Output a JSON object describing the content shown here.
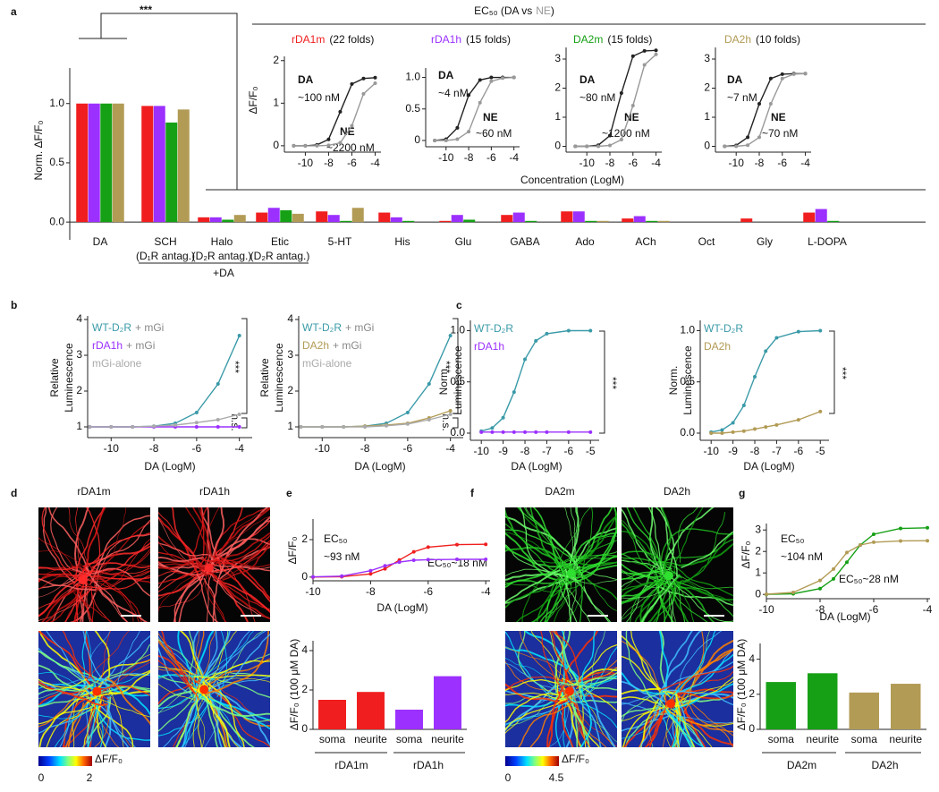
{
  "panel_labels": [
    "a",
    "b",
    "c",
    "d",
    "e",
    "f",
    "g"
  ],
  "inset_header": [
    {
      "text": "EC₅₀ (DA vs"
    },
    {
      "text": "NE",
      "color": "#999999"
    },
    {
      "text": ")"
    }
  ],
  "images": [
    {
      "titles": [
        {
          "text": "rDA1m",
          "color": "#f01e1e"
        },
        {
          "text": "rDA1h",
          "color": "#9b30ff"
        }
      ],
      "colorbar": {
        "ticks": [
          0,
          2
        ],
        "label": "ΔF/F₀"
      }
    },
    {
      "titles": [
        {
          "text": "DA2m",
          "color": "#16a016"
        },
        {
          "text": "DA2h",
          "color": "#b29b55"
        }
      ],
      "colorbar": {
        "ticks": [
          0,
          4.5
        ],
        "label": "ΔF/F₀"
      }
    }
  ],
  "chart_data": [
    {
      "type": "bar",
      "ylabel": "Norm. ΔF/F₀",
      "ylim": [
        -0.15,
        1.3
      ],
      "yticks": [
        {
          "value": 0,
          "label": "0.0"
        },
        {
          "value": 0.5,
          "label": "0.5"
        },
        {
          "value": 1,
          "label": "1.0"
        }
      ],
      "categories": [
        "DA",
        "SCH",
        "Halo",
        "Etic",
        "5-HT",
        "His",
        "Glu",
        "GABA",
        "Ado",
        "ACh",
        "Oct",
        "Gly",
        "L-DOPA"
      ],
      "category_sublabels": [
        null,
        "(D₁R antag.)",
        "(D₂R antag.)",
        "(D₂R antag.)",
        null,
        null,
        null,
        null,
        null,
        null,
        null,
        null,
        null
      ],
      "series": [
        {
          "color": "#f01e1e",
          "values": [
            1,
            0.98,
            0.04,
            0.08,
            0.09,
            0.08,
            0.01,
            0.06,
            0.09,
            0.03,
            0,
            0.03,
            0.08
          ]
        },
        {
          "color": "#9b30ff",
          "values": [
            1,
            0.98,
            0.04,
            0.12,
            0.06,
            0.04,
            0.06,
            0.08,
            0.09,
            0.05,
            0,
            0,
            0.11
          ]
        },
        {
          "color": "#16a016",
          "values": [
            1,
            0.84,
            0.02,
            0.1,
            0.01,
            0.01,
            0.02,
            0.01,
            0.01,
            0.01,
            0,
            0,
            0.01
          ]
        },
        {
          "color": "#b29b55",
          "values": [
            1,
            0.95,
            0.06,
            0.07,
            0.12,
            0,
            0,
            0,
            0.01,
            0.01,
            0,
            0,
            0
          ]
        }
      ],
      "annotations": [
        {
          "text": "***"
        },
        {
          "text": "+DA"
        }
      ]
    },
    {
      "type": "line",
      "title": "rDA1m",
      "title_color": "#f01e1e",
      "subtitle": "(22 folds)",
      "ylabel": "ΔF/F₀",
      "xlabel": "Concentration (LogM)",
      "xlim": [
        -11.8,
        -3.5
      ],
      "ylim": [
        -0.15,
        2.1
      ],
      "xticks": [
        -10,
        -8,
        -6,
        -4
      ],
      "yticks": [
        0,
        1,
        2
      ],
      "x": [
        -11,
        -10,
        -9,
        -8,
        -7,
        -6,
        -5,
        -4
      ],
      "series": [
        {
          "color": "#222222",
          "values": [
            0,
            0,
            0.02,
            0.15,
            0.8,
            1.45,
            1.58,
            1.6
          ]
        },
        {
          "color": "#999999",
          "values": [
            0,
            0,
            0,
            0.01,
            0.07,
            0.47,
            1.22,
            1.47
          ]
        }
      ],
      "annotations": [
        {
          "text": "DA"
        },
        {
          "text": "~100 nM"
        },
        {
          "text": "NE",
          "color": "#999999"
        },
        {
          "text": "~2200 nM",
          "color": "#999999"
        }
      ]
    },
    {
      "type": "line",
      "title": "rDA1h",
      "title_color": "#9b30ff",
      "subtitle": "(15 folds)",
      "xlim": [
        -11.8,
        -3.5
      ],
      "ylim": [
        -0.1,
        1.15
      ],
      "xticks": [
        -10,
        -8,
        -6,
        -4
      ],
      "yticks": [
        0,
        {
          "value": 0.5,
          "label": "0.5"
        },
        {
          "value": 1,
          "label": "1.0"
        }
      ],
      "x": [
        -11,
        -10,
        -9,
        -8,
        -7,
        -6,
        -5,
        -4
      ],
      "series": [
        {
          "color": "#222222",
          "values": [
            0,
            0.02,
            0.2,
            0.72,
            0.96,
            1,
            1,
            1
          ]
        },
        {
          "color": "#999999",
          "values": [
            0,
            0,
            0.02,
            0.14,
            0.6,
            0.94,
            0.99,
            1
          ]
        }
      ],
      "annotations": [
        {
          "text": "DA"
        },
        {
          "text": "~4 nM"
        },
        {
          "text": "NE",
          "color": "#999999"
        },
        {
          "text": "~60 nM",
          "color": "#999999"
        }
      ]
    },
    {
      "type": "line",
      "title": "DA2m",
      "title_color": "#16a016",
      "subtitle": "(15 folds)",
      "xlim": [
        -11.8,
        -3.5
      ],
      "ylim": [
        -0.2,
        3.4
      ],
      "xticks": [
        -10,
        -8,
        -6,
        -4
      ],
      "yticks": [
        0,
        1,
        2,
        3
      ],
      "x": [
        -11,
        -10,
        -9,
        -8,
        -7,
        -6,
        -5,
        -4
      ],
      "series": [
        {
          "color": "#222222",
          "values": [
            0,
            0,
            0.04,
            0.37,
            1.83,
            3.1,
            3.28,
            3.3
          ]
        },
        {
          "color": "#999999",
          "values": [
            0,
            0,
            0,
            0.03,
            0.23,
            1.4,
            2.8,
            3.16
          ]
        }
      ],
      "annotations": [
        {
          "text": "DA"
        },
        {
          "text": "~80 nM"
        },
        {
          "text": "NE",
          "color": "#999999"
        },
        {
          "text": "~1200 nM",
          "color": "#999999"
        }
      ]
    },
    {
      "type": "line",
      "title": "DA2h",
      "title_color": "#b29b55",
      "subtitle": "(10 folds)",
      "xlim": [
        -11.8,
        -3.5
      ],
      "ylim": [
        -0.2,
        3.4
      ],
      "xticks": [
        -10,
        -8,
        -6,
        -4
      ],
      "yticks": [
        0,
        1,
        2,
        3
      ],
      "x": [
        -11,
        -10,
        -9,
        -8,
        -7,
        -6,
        -5,
        -4
      ],
      "series": [
        {
          "color": "#222222",
          "values": [
            0,
            0.03,
            0.31,
            1.46,
            2.33,
            2.48,
            2.5,
            2.5
          ]
        },
        {
          "color": "#999999",
          "values": [
            0,
            0,
            0.04,
            0.31,
            1.46,
            2.33,
            2.48,
            2.5
          ]
        }
      ],
      "annotations": [
        {
          "text": "DA"
        },
        {
          "text": "~7 nM"
        },
        {
          "text": "NE",
          "color": "#999999"
        },
        {
          "text": "~70 nM",
          "color": "#999999"
        }
      ]
    },
    {
      "type": "line",
      "ylabel": [
        "Relative",
        "Luminescence"
      ],
      "xlabel": "DA (LogM)",
      "xlim": [
        -11.1,
        -3.4
      ],
      "ylim": [
        0.7,
        4.1
      ],
      "xticks": [
        -10,
        -8,
        -6,
        -4
      ],
      "yticks": [
        1,
        2,
        3,
        4
      ],
      "x": [
        -11,
        -10,
        -9,
        -8,
        -7,
        -6,
        -5,
        -4
      ],
      "series": [
        {
          "name": "WT-D₂R",
          "suffix": "+ mGi",
          "color": "#3a9aa8",
          "values": [
            1,
            1,
            1,
            1.02,
            1.1,
            1.4,
            2.2,
            3.55
          ]
        },
        {
          "name": "rDA1h",
          "suffix": "+ mGi",
          "color": "#9b30ff",
          "values": [
            1,
            1,
            1,
            1,
            1,
            1,
            1,
            1
          ]
        },
        {
          "name": "mGi-alone",
          "color": "#aaaaaa",
          "values": [
            1,
            1,
            1,
            1.02,
            1.05,
            1.12,
            1.2,
            1.35
          ]
        }
      ],
      "annotations": [
        {
          "text": "***"
        },
        {
          "text": "n.s."
        }
      ]
    },
    {
      "type": "line",
      "ylabel": [
        "Relative",
        "Luminescence"
      ],
      "xlabel": "DA (LogM)",
      "xlim": [
        -11.1,
        -3.4
      ],
      "ylim": [
        0.7,
        4.1
      ],
      "xticks": [
        -10,
        -8,
        -6,
        -4
      ],
      "yticks": [
        1,
        2,
        3,
        4
      ],
      "x": [
        -11,
        -10,
        -9,
        -8,
        -7,
        -6,
        -5,
        -4
      ],
      "series": [
        {
          "name": "WT-D₂R",
          "suffix": "+ mGi",
          "color": "#3a9aa8",
          "values": [
            1,
            1,
            1,
            1.02,
            1.1,
            1.4,
            2.2,
            3.55
          ]
        },
        {
          "name": "DA2h",
          "suffix": "+ mGi",
          "color": "#b29b55",
          "values": [
            1,
            1,
            1,
            1.02,
            1.05,
            1.1,
            1.25,
            1.45
          ]
        },
        {
          "name": "mGi-alone",
          "color": "#aaaaaa",
          "values": [
            1,
            1,
            1,
            1,
            1.03,
            1.08,
            1.2,
            1.35
          ]
        }
      ],
      "annotations": [
        {
          "text": "***"
        },
        {
          "text": "n.s."
        }
      ]
    },
    {
      "type": "line",
      "ylabel": [
        "Norm.",
        "Luminescence"
      ],
      "xlabel": "DA (LogM)",
      "xlim": [
        -10.5,
        -4.6
      ],
      "ylim": [
        -0.07,
        1.1
      ],
      "xticks": [
        -10,
        -9,
        -8,
        -7,
        -6,
        -5
      ],
      "yticks": [
        {
          "value": 0,
          "label": "0.0"
        },
        {
          "value": 0.5,
          "label": "0.5"
        },
        {
          "value": 1,
          "label": "1.0"
        }
      ],
      "x": [
        -10,
        -9.5,
        -9,
        -8.5,
        -8,
        -7.5,
        -7,
        -6,
        -5
      ],
      "series": [
        {
          "name": "WT-D₂R",
          "color": "#3a9aa8",
          "values": [
            0.02,
            0.05,
            0.15,
            0.4,
            0.72,
            0.9,
            0.97,
            1,
            1
          ]
        },
        {
          "name": "rDA1h",
          "color": "#9b30ff",
          "values": [
            0.01,
            0.01,
            0.01,
            0.01,
            0.01,
            0.01,
            0.01,
            0.01,
            0.01
          ]
        }
      ],
      "annotations": [
        {
          "text": "***"
        }
      ]
    },
    {
      "type": "line",
      "ylabel": [
        "Norm.",
        "Luminescence"
      ],
      "xlabel": "DA (LogM)",
      "xlim": [
        -10.5,
        -4.6
      ],
      "ylim": [
        -0.07,
        1.1
      ],
      "xticks": [
        -10,
        -9,
        -8,
        -7,
        -6,
        -5
      ],
      "yticks": [
        {
          "value": 0,
          "label": "0.0"
        },
        {
          "value": 0.5,
          "label": "0.5"
        },
        {
          "value": 1,
          "label": "1.0"
        }
      ],
      "x": [
        -10,
        -9.5,
        -9,
        -8.5,
        -8,
        -7.5,
        -7,
        -6,
        -5
      ],
      "series": [
        {
          "name": "WT-D₂R",
          "color": "#3a9aa8",
          "values": [
            0.01,
            0.03,
            0.1,
            0.27,
            0.55,
            0.8,
            0.93,
            0.99,
            1
          ]
        },
        {
          "name": "DA2h",
          "color": "#b29b55",
          "values": [
            0,
            0,
            0.01,
            0.02,
            0.04,
            0.06,
            0.08,
            0.13,
            0.21
          ]
        }
      ],
      "annotations": [
        {
          "text": "***"
        }
      ]
    },
    {
      "type": "line",
      "ylabel": "ΔF/F₀",
      "xlabel": "DA (LogM)",
      "xlim": [
        -10,
        -3.85
      ],
      "ylim": [
        -0.2,
        3.1
      ],
      "xticks": [
        -10,
        -8,
        -6,
        -4
      ],
      "yticks": [
        0,
        2
      ],
      "x": [
        -10,
        -9,
        -8,
        -7.5,
        -7,
        -6.5,
        -6,
        -5,
        -4
      ],
      "series": [
        {
          "color": "#f01e1e",
          "values": [
            0,
            0.02,
            0.17,
            0.44,
            0.91,
            1.35,
            1.6,
            1.73,
            1.75
          ]
        },
        {
          "color": "#9b30ff",
          "values": [
            0.01,
            0.05,
            0.34,
            0.6,
            0.8,
            0.9,
            0.93,
            0.95,
            0.95
          ]
        }
      ],
      "annotations": [
        {
          "text": "EC₅₀",
          "color": "#f01e1e"
        },
        {
          "text": "~93 nM",
          "color": "#f01e1e"
        },
        {
          "text": "EC₅₀~18 nM",
          "color": "#9b30ff"
        }
      ]
    },
    {
      "type": "bar",
      "ylabel": "ΔF/F₀ (100 μM DA)",
      "ylim": [
        0,
        4.5
      ],
      "yticks": [
        0,
        2,
        4
      ],
      "categories": [
        "soma",
        "neurite",
        "soma",
        "neurite"
      ],
      "groups": [
        "rDA1m",
        "rDA1h"
      ],
      "colors": [
        "#f01e1e",
        "#f01e1e",
        "#9b30ff",
        "#9b30ff"
      ],
      "values": [
        1.5,
        1.9,
        1,
        2.7
      ]
    },
    {
      "type": "line",
      "ylabel": "ΔF/F₀",
      "xlabel": "DA (LogM)",
      "xlim": [
        -10,
        -3.9
      ],
      "ylim": [
        -0.2,
        3.3
      ],
      "xticks": [
        -10,
        -8,
        -6,
        -4
      ],
      "yticks": [
        0,
        1,
        2,
        3
      ],
      "x": [
        -10,
        -9,
        -8,
        -7.5,
        -7,
        -6.5,
        -6,
        -5,
        -4
      ],
      "series": [
        {
          "color": "#16a016",
          "values": [
            0,
            0.03,
            0.27,
            0.72,
            1.5,
            2.3,
            2.8,
            3.07,
            3.1
          ]
        },
        {
          "color": "#b29b55",
          "values": [
            0.01,
            0.09,
            0.65,
            1.18,
            1.95,
            2.3,
            2.43,
            2.49,
            2.5
          ]
        }
      ],
      "annotations": [
        {
          "text": "EC₅₀",
          "color": "#16a016"
        },
        {
          "text": "~104 nM",
          "color": "#16a016"
        },
        {
          "text": "EC₅₀~28 nM",
          "color": "#b29b55"
        }
      ]
    },
    {
      "type": "bar",
      "ylabel": "ΔF/F₀ (100 μM DA)",
      "ylim": [
        0,
        4.9
      ],
      "yticks": [
        0,
        2,
        4
      ],
      "categories": [
        "soma",
        "neurite",
        "soma",
        "neurite"
      ],
      "groups": [
        "DA2m",
        "DA2h"
      ],
      "colors": [
        "#16a016",
        "#16a016",
        "#b29b55",
        "#b29b55"
      ],
      "values": [
        2.7,
        3.2,
        2.1,
        2.6
      ]
    }
  ]
}
